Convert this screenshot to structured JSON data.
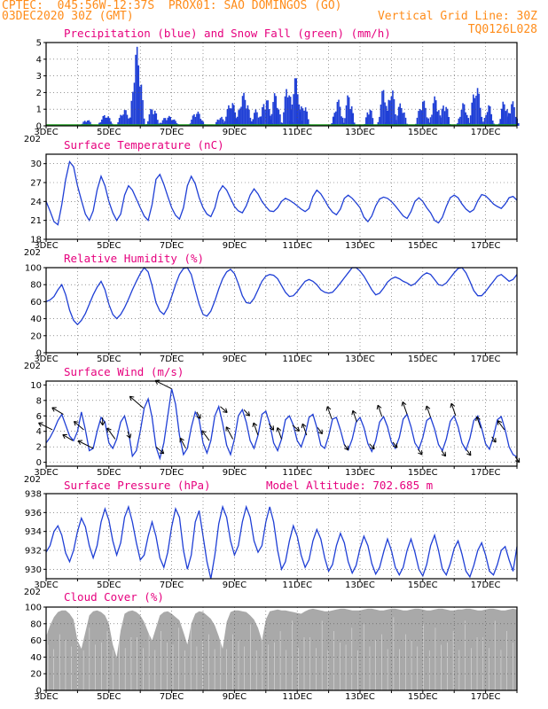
{
  "header": {
    "station": "CPTEC:  045:56W-12:37S  PROX01: SAO DOMINGOS (GO)",
    "run": "03DEC2020 30Z (GMT)",
    "grid_note": "Vertical Grid Line: 30Z",
    "code": "TQ0126L028"
  },
  "colors": {
    "accent": "#ff8c1a",
    "title": "#e6007e",
    "series": "#1f3fd6",
    "snow": "#1a9a1a",
    "cloud": "#a9a9a9"
  },
  "x_axis": {
    "labels": [
      "3DEC",
      "5DEC",
      "7DEC",
      "9DEC",
      "11DEC",
      "13DEC",
      "15DEC",
      "17DEC"
    ],
    "label_days": [
      0,
      2,
      4,
      6,
      8,
      10,
      12,
      14
    ],
    "days_total": 15,
    "cut_label": "202"
  },
  "chart_data": [
    {
      "type": "bar",
      "title": "Precipitation (blue) and Snow Fall (green) (mm/h)",
      "ylim": [
        0,
        5
      ],
      "yticks": [
        "0",
        "1",
        "2",
        "3",
        "4",
        "5"
      ],
      "grid": true,
      "events": [
        [
          1.3,
          0.4,
          0.4
        ],
        [
          1.9,
          0.5,
          0.7
        ],
        [
          2.5,
          0.5,
          1.0
        ],
        [
          2.9,
          0.45,
          4.8
        ],
        [
          3.4,
          0.4,
          1.2
        ],
        [
          3.9,
          0.7,
          0.6
        ],
        [
          4.8,
          0.5,
          0.9
        ],
        [
          5.55,
          0.35,
          0.6
        ],
        [
          5.9,
          0.5,
          1.5
        ],
        [
          6.3,
          0.5,
          2.0
        ],
        [
          6.7,
          0.4,
          1.0
        ],
        [
          7.0,
          0.4,
          1.8
        ],
        [
          7.3,
          0.4,
          2.0
        ],
        [
          7.7,
          0.35,
          2.6
        ],
        [
          7.95,
          0.4,
          3.0
        ],
        [
          8.2,
          0.4,
          1.4
        ],
        [
          9.3,
          0.4,
          1.6
        ],
        [
          9.65,
          0.35,
          2.0
        ],
        [
          10.3,
          0.3,
          1.2
        ],
        [
          10.75,
          0.35,
          2.3
        ],
        [
          11.0,
          0.35,
          2.4
        ],
        [
          11.3,
          0.4,
          1.4
        ],
        [
          12.0,
          0.45,
          1.6
        ],
        [
          12.4,
          0.4,
          1.8
        ],
        [
          12.7,
          0.35,
          1.5
        ],
        [
          13.3,
          0.4,
          1.4
        ],
        [
          13.7,
          0.45,
          2.5
        ],
        [
          14.1,
          0.35,
          1.3
        ],
        [
          14.6,
          0.35,
          1.6
        ],
        [
          14.85,
          0.4,
          1.5
        ]
      ],
      "snow_values": [
        0
      ],
      "x_labels_ref": "x_axis"
    },
    {
      "type": "line",
      "title": "Surface Temperature (nC)",
      "ylim": [
        18,
        31.5
      ],
      "yticks": [
        "18",
        "21",
        "24",
        "27",
        "30"
      ],
      "grid": true,
      "x_step_days": 0.125,
      "series": [
        {
          "values": [
            24.0,
            22.5,
            20.8,
            20.3,
            23.5,
            27.5,
            30.3,
            29.5,
            26.5,
            24.2,
            22.0,
            21.0,
            22.5,
            25.8,
            28.0,
            26.5,
            24.0,
            22.2,
            21.0,
            22.0,
            25.0,
            26.5,
            25.8,
            24.4,
            23.0,
            21.7,
            21.0,
            23.5,
            27.5,
            28.3,
            26.7,
            24.8,
            23.0,
            21.8,
            21.2,
            23.0,
            26.5,
            28.0,
            26.8,
            24.6,
            23.0,
            22.0,
            21.6,
            23.0,
            25.5,
            26.5,
            25.8,
            24.5,
            23.2,
            22.5,
            22.2,
            23.3,
            25.0,
            26.0,
            25.2,
            24.0,
            23.2,
            22.5,
            22.4,
            23.0,
            24.0,
            24.5,
            24.2,
            23.8,
            23.3,
            22.8,
            22.4,
            22.9,
            24.8,
            25.8,
            25.2,
            24.2,
            23.1,
            22.3,
            21.9,
            22.8,
            24.5,
            25.0,
            24.5,
            23.8,
            23.0,
            21.5,
            20.8,
            21.7,
            23.3,
            24.4,
            24.7,
            24.5,
            24.0,
            23.3,
            22.5,
            21.7,
            21.3,
            22.4,
            24.0,
            24.6,
            24.0,
            23.0,
            22.2,
            21.0,
            20.6,
            21.5,
            23.2,
            24.6,
            25.0,
            24.6,
            23.6,
            22.8,
            22.3,
            22.7,
            24.1,
            25.1,
            24.9,
            24.3,
            23.6,
            23.2,
            22.9,
            23.6,
            24.6,
            24.8,
            24.2
          ]
        }
      ],
      "x_labels_ref": "x_axis"
    },
    {
      "type": "line",
      "title": "Relative Humidity (%)",
      "ylim": [
        0,
        100
      ],
      "yticks": [
        "0",
        "20",
        "40",
        "60",
        "80",
        "100"
      ],
      "grid": true,
      "x_step_days": 0.125,
      "series": [
        {
          "values": [
            60,
            62,
            66,
            74,
            80,
            68,
            50,
            38,
            33,
            38,
            46,
            57,
            68,
            77,
            84,
            74,
            57,
            45,
            40,
            45,
            53,
            63,
            74,
            84,
            93,
            100,
            95,
            79,
            59,
            49,
            45,
            53,
            66,
            80,
            92,
            99,
            100,
            92,
            74,
            57,
            45,
            43,
            49,
            61,
            75,
            87,
            95,
            98,
            93,
            81,
            67,
            59,
            58,
            64,
            74,
            84,
            90,
            92,
            91,
            87,
            79,
            71,
            66,
            67,
            72,
            78,
            84,
            86,
            84,
            80,
            74,
            71,
            70,
            71,
            76,
            82,
            88,
            94,
            100,
            100,
            96,
            90,
            82,
            74,
            68,
            70,
            76,
            83,
            87,
            89,
            87,
            84,
            82,
            79,
            81,
            86,
            91,
            94,
            92,
            86,
            80,
            79,
            82,
            88,
            94,
            99,
            100,
            94,
            84,
            73,
            67,
            67,
            72,
            78,
            84,
            90,
            92,
            88,
            84,
            86,
            92
          ]
        }
      ],
      "x_labels_ref": "x_axis"
    },
    {
      "type": "line",
      "title": "Surface Wind (m/s)",
      "ylim": [
        -0.5,
        10.5
      ],
      "yticks": [
        "0",
        "2",
        "4",
        "6",
        "8",
        "10"
      ],
      "grid": true,
      "x_step_days": 0.125,
      "series": [
        {
          "values": [
            2.5,
            3.2,
            4.2,
            5.4,
            6.2,
            4.8,
            3.4,
            2.8,
            4.0,
            6.5,
            4.2,
            1.5,
            1.8,
            4.0,
            5.8,
            5.2,
            2.5,
            1.8,
            3.0,
            5.2,
            6.0,
            4.0,
            0.8,
            1.5,
            4.0,
            7.0,
            8.2,
            5.8,
            2.0,
            0.5,
            2.5,
            6.0,
            9.5,
            7.5,
            3.5,
            1.0,
            1.8,
            4.5,
            6.5,
            5.5,
            2.5,
            1.2,
            2.8,
            6.0,
            7.2,
            5.0,
            2.2,
            1.0,
            3.0,
            6.0,
            6.8,
            5.2,
            2.8,
            1.8,
            3.5,
            6.2,
            6.6,
            5.0,
            2.5,
            1.5,
            3.0,
            5.5,
            6.0,
            4.8,
            2.8,
            2.0,
            3.5,
            5.8,
            6.2,
            4.5,
            2.2,
            1.8,
            3.4,
            5.6,
            5.8,
            4.2,
            2.3,
            1.6,
            3.0,
            5.2,
            5.8,
            4.5,
            2.4,
            1.4,
            2.8,
            5.2,
            5.9,
            4.6,
            2.6,
            1.8,
            3.2,
            5.6,
            6.2,
            4.6,
            2.5,
            1.7,
            3.2,
            5.4,
            5.8,
            4.3,
            2.3,
            1.5,
            3.0,
            5.3,
            6.0,
            4.6,
            2.5,
            1.6,
            3.1,
            5.4,
            6.0,
            4.4,
            2.4,
            1.7,
            3.3,
            5.5,
            5.9,
            4.2,
            2.0,
            1.0,
            0.7
          ]
        }
      ],
      "barbs": [
        [
          0.2,
          45,
          1.0
        ],
        [
          0.55,
          50,
          0.9
        ],
        [
          0.85,
          50,
          0.8
        ],
        [
          1.2,
          60,
          1.0
        ],
        [
          1.5,
          45,
          1.1
        ],
        [
          1.8,
          -90,
          0.8
        ],
        [
          2.2,
          70,
          1.2
        ],
        [
          2.6,
          -100,
          0.7
        ],
        [
          3.1,
          60,
          1.4
        ],
        [
          3.5,
          -120,
          0.8
        ],
        [
          4.0,
          45,
          1.2
        ],
        [
          4.45,
          75,
          1.1
        ],
        [
          4.8,
          -105,
          0.7
        ],
        [
          5.2,
          70,
          1.1
        ],
        [
          5.55,
          -120,
          0.7
        ],
        [
          5.95,
          75,
          1.3
        ],
        [
          6.3,
          -115,
          0.7
        ],
        [
          6.75,
          80,
          1.3
        ],
        [
          7.1,
          -110,
          0.7
        ],
        [
          7.5,
          80,
          1.2
        ],
        [
          7.85,
          -120,
          0.7
        ],
        [
          8.3,
          80,
          1.2
        ],
        [
          8.65,
          -110,
          0.7
        ],
        [
          9.1,
          80,
          1.3
        ],
        [
          9.5,
          -110,
          0.6
        ],
        [
          9.9,
          80,
          1.2
        ],
        [
          10.3,
          -115,
          0.6
        ],
        [
          10.7,
          80,
          1.2
        ],
        [
          11.05,
          -110,
          0.6
        ],
        [
          11.5,
          80,
          1.3
        ],
        [
          11.85,
          -110,
          0.6
        ],
        [
          12.25,
          80,
          1.2
        ],
        [
          12.6,
          -110,
          0.6
        ],
        [
          13.05,
          80,
          1.3
        ],
        [
          13.4,
          -110,
          0.6
        ],
        [
          13.85,
          80,
          1.2
        ],
        [
          14.2,
          -110,
          0.6
        ],
        [
          14.6,
          70,
          1.0
        ],
        [
          14.95,
          -110,
          0.6
        ]
      ],
      "x_labels_ref": "x_axis"
    },
    {
      "type": "line",
      "title": "Surface Pressure (hPa)",
      "annotation": "Model Altitude: 702.685 m",
      "ylim": [
        929,
        938
      ],
      "yticks": [
        "930",
        "932",
        "934",
        "936",
        "938"
      ],
      "grid": true,
      "x_step_days": 0.125,
      "series": [
        {
          "values": [
            931.8,
            932.5,
            934.0,
            934.6,
            933.6,
            931.7,
            930.8,
            932.0,
            934.0,
            935.4,
            934.5,
            932.5,
            931.2,
            932.5,
            935.0,
            936.4,
            935.2,
            933.0,
            931.5,
            932.8,
            935.5,
            936.6,
            935.0,
            932.8,
            931.0,
            931.5,
            933.5,
            935.0,
            933.5,
            931.2,
            930.2,
            931.8,
            934.5,
            936.4,
            935.5,
            932.0,
            930.0,
            931.5,
            935.0,
            936.2,
            933.5,
            930.8,
            928.8,
            931.5,
            934.8,
            936.6,
            935.5,
            933.0,
            931.5,
            932.5,
            935.0,
            936.6,
            935.5,
            933.0,
            931.8,
            932.5,
            935.0,
            936.6,
            935.0,
            932.0,
            930.0,
            930.8,
            933.0,
            934.6,
            933.5,
            931.5,
            930.2,
            931.0,
            933.0,
            934.2,
            933.2,
            931.2,
            929.8,
            930.5,
            932.5,
            933.8,
            932.8,
            930.8,
            929.6,
            930.4,
            932.2,
            933.5,
            932.5,
            930.6,
            929.5,
            930.2,
            931.8,
            933.2,
            932.0,
            930.2,
            929.4,
            930.2,
            932.0,
            933.2,
            931.8,
            930.0,
            929.3,
            930.5,
            932.5,
            933.6,
            932.0,
            930.0,
            929.4,
            930.6,
            932.2,
            933.0,
            931.6,
            929.8,
            929.2,
            930.4,
            932.0,
            932.8,
            931.5,
            929.8,
            929.4,
            930.5,
            932.0,
            932.4,
            931.0,
            929.8,
            932.4
          ]
        }
      ],
      "x_labels_ref": "x_axis"
    },
    {
      "type": "area",
      "title": "Cloud Cover (%)",
      "ylim": [
        0,
        100
      ],
      "yticks": [
        "0",
        "20",
        "40",
        "60",
        "80",
        "100"
      ],
      "grid": true,
      "x_step_days": 0.125,
      "series": [
        {
          "values": [
            65,
            78,
            88,
            94,
            96,
            96,
            92,
            85,
            60,
            50,
            70,
            90,
            95,
            96,
            94,
            90,
            80,
            55,
            40,
            72,
            92,
            95,
            96,
            94,
            90,
            82,
            70,
            60,
            75,
            90,
            94,
            95,
            92,
            88,
            84,
            70,
            55,
            80,
            92,
            95,
            94,
            90,
            86,
            78,
            65,
            50,
            82,
            94,
            96,
            96,
            95,
            94,
            90,
            85,
            75,
            60,
            85,
            95,
            96,
            97,
            96,
            96,
            95,
            94,
            93,
            92,
            95,
            97,
            98,
            97,
            96,
            95,
            95,
            96,
            97,
            98,
            98,
            97,
            96,
            96,
            96,
            97,
            98,
            98,
            97,
            96,
            96,
            97,
            98,
            98,
            97,
            96,
            96,
            97,
            98,
            98,
            97,
            96,
            96,
            97,
            98,
            98,
            97,
            96,
            96,
            97,
            97,
            98,
            98,
            97,
            96,
            96,
            97,
            98,
            98,
            97,
            96,
            96,
            97,
            98,
            97
          ]
        }
      ],
      "x_labels_ref": "x_axis"
    }
  ]
}
